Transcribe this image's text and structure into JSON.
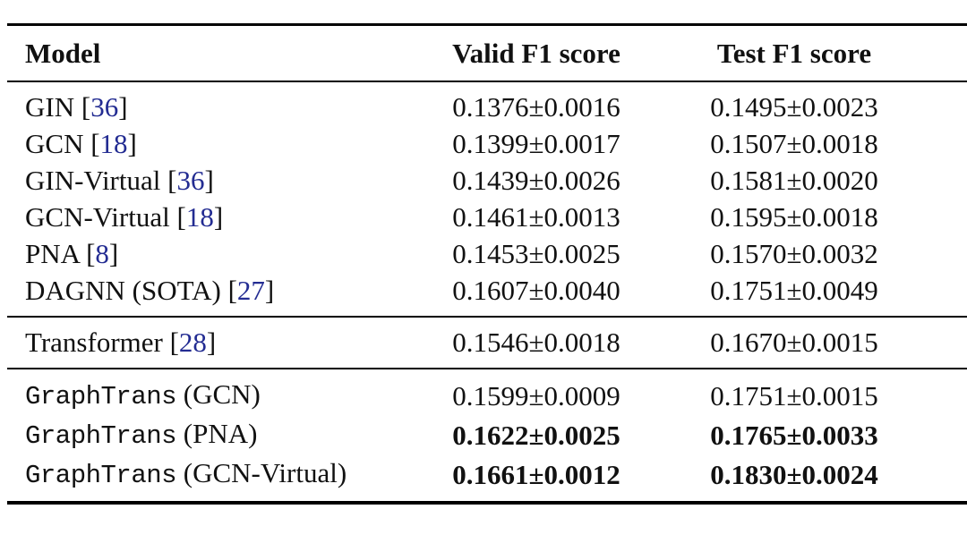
{
  "table": {
    "headers": [
      "Model",
      "Valid F1 score",
      "Test F1 score"
    ],
    "citation_format": {
      "open": "[",
      "close": "]"
    },
    "colors": {
      "citation": "#232c92",
      "text": "#111111",
      "rule": "#000000",
      "background": "#ffffff"
    },
    "sections": [
      {
        "rows": [
          {
            "name": "GIN",
            "cite": "36",
            "mono": false,
            "bold": false,
            "valid": "0.1376±0.0016",
            "test": "0.1495±0.0023"
          },
          {
            "name": "GCN",
            "cite": "18",
            "mono": false,
            "bold": false,
            "valid": "0.1399±0.0017",
            "test": "0.1507±0.0018"
          },
          {
            "name": "GIN-Virtual",
            "cite": "36",
            "mono": false,
            "bold": false,
            "valid": "0.1439±0.0026",
            "test": "0.1581±0.0020"
          },
          {
            "name": "GCN-Virtual",
            "cite": "18",
            "mono": false,
            "bold": false,
            "valid": "0.1461±0.0013",
            "test": "0.1595±0.0018"
          },
          {
            "name": "PNA",
            "cite": "8",
            "mono": false,
            "bold": false,
            "valid": "0.1453±0.0025",
            "test": "0.1570±0.0032"
          },
          {
            "name": "DAGNN (SOTA)",
            "cite": "27",
            "mono": false,
            "bold": false,
            "valid": "0.1607±0.0040",
            "test": "0.1751±0.0049"
          }
        ]
      },
      {
        "rows": [
          {
            "name": "Transformer",
            "cite": "28",
            "mono": false,
            "bold": false,
            "valid": "0.1546±0.0018",
            "test": "0.1670±0.0015"
          }
        ]
      },
      {
        "rows": [
          {
            "name": "GraphTrans",
            "suffix": " (GCN)",
            "mono": true,
            "bold": false,
            "valid": "0.1599±0.0009",
            "test": "0.1751±0.0015"
          },
          {
            "name": "GraphTrans",
            "suffix": " (PNA)",
            "mono": true,
            "bold": true,
            "valid": "0.1622±0.0025",
            "test": "0.1765±0.0033"
          },
          {
            "name": "GraphTrans",
            "suffix": " (GCN-Virtual)",
            "mono": true,
            "bold": true,
            "valid": "0.1661±0.0012",
            "test": "0.1830±0.0024"
          }
        ]
      }
    ]
  }
}
